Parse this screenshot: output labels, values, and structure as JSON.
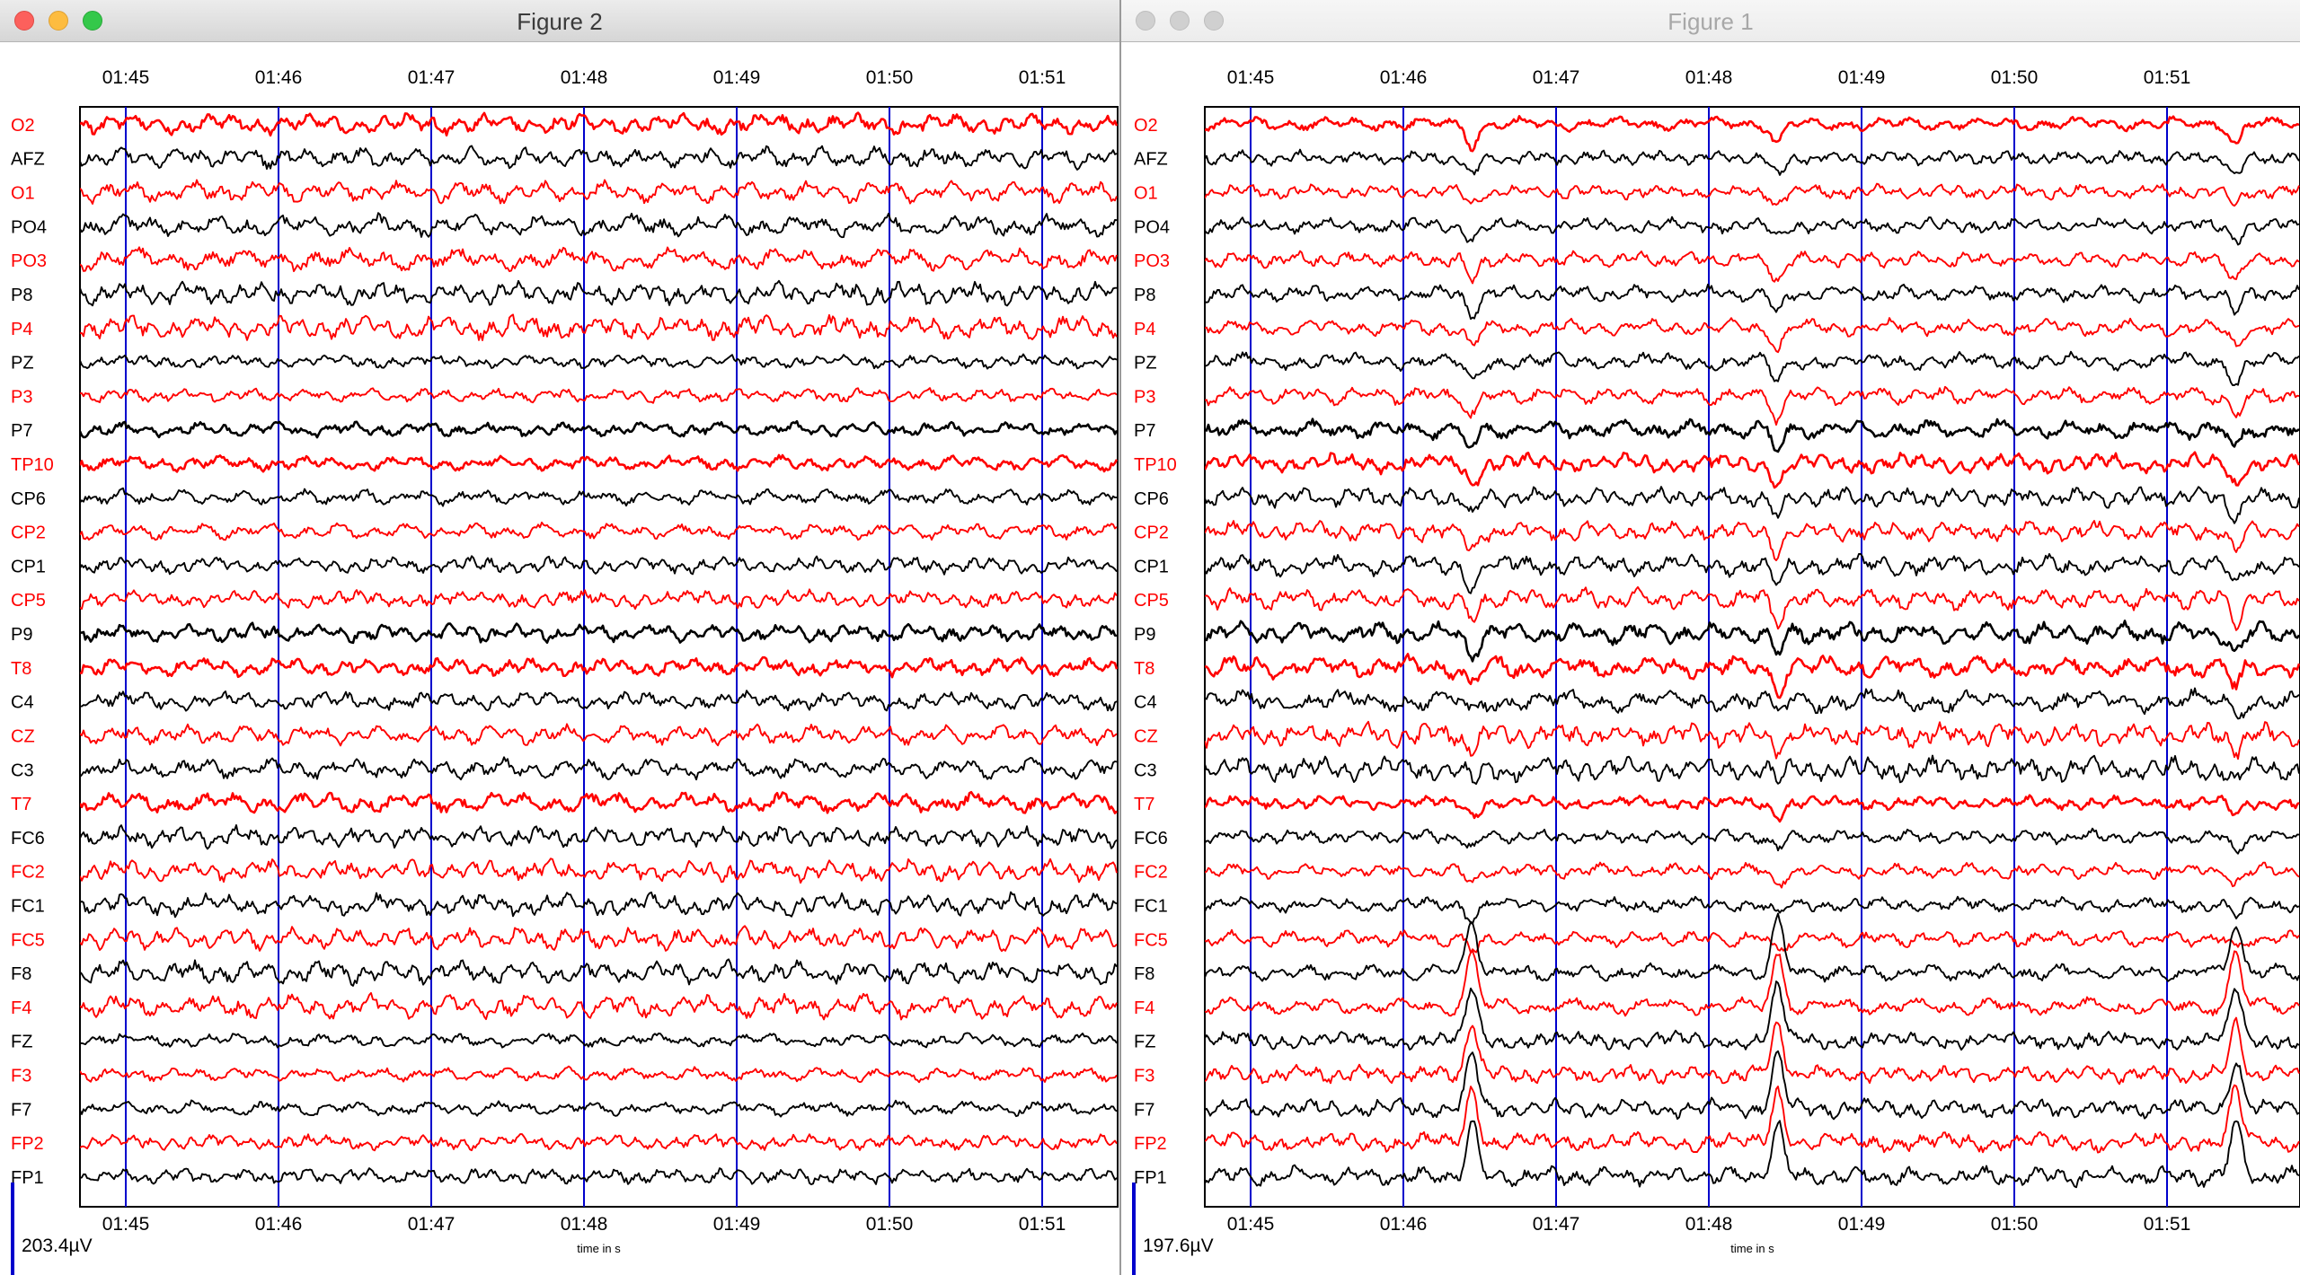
{
  "windows": [
    {
      "id": "left",
      "title": "Figure 2",
      "active": true,
      "scale_label": "203.4µV",
      "xlabel": "time in s",
      "artifacts": []
    },
    {
      "id": "right",
      "title": "Figure 1",
      "active": false,
      "scale_label": "197.6µV",
      "xlabel": "time in s",
      "artifacts": [
        1.45,
        3.45,
        6.45
      ]
    }
  ],
  "chart_data": {
    "type": "line",
    "xlabel": "time in s",
    "x_tick_labels": [
      "01:45",
      "01:46",
      "01:47",
      "01:48",
      "01:49",
      "01:50",
      "01:51"
    ],
    "channels": [
      "O2",
      "AFZ",
      "O1",
      "PO4",
      "PO3",
      "P8",
      "P4",
      "PZ",
      "P3",
      "P7",
      "TP10",
      "CP6",
      "CP2",
      "CP1",
      "CP5",
      "P9",
      "T8",
      "C4",
      "CZ",
      "C3",
      "T7",
      "FC6",
      "FC2",
      "FC1",
      "FC5",
      "F8",
      "F4",
      "FZ",
      "F3",
      "F7",
      "FP2",
      "FP1"
    ],
    "colors": {
      "red": "#ff0000",
      "black": "#000000",
      "gridline": "#0000cc"
    }
  }
}
